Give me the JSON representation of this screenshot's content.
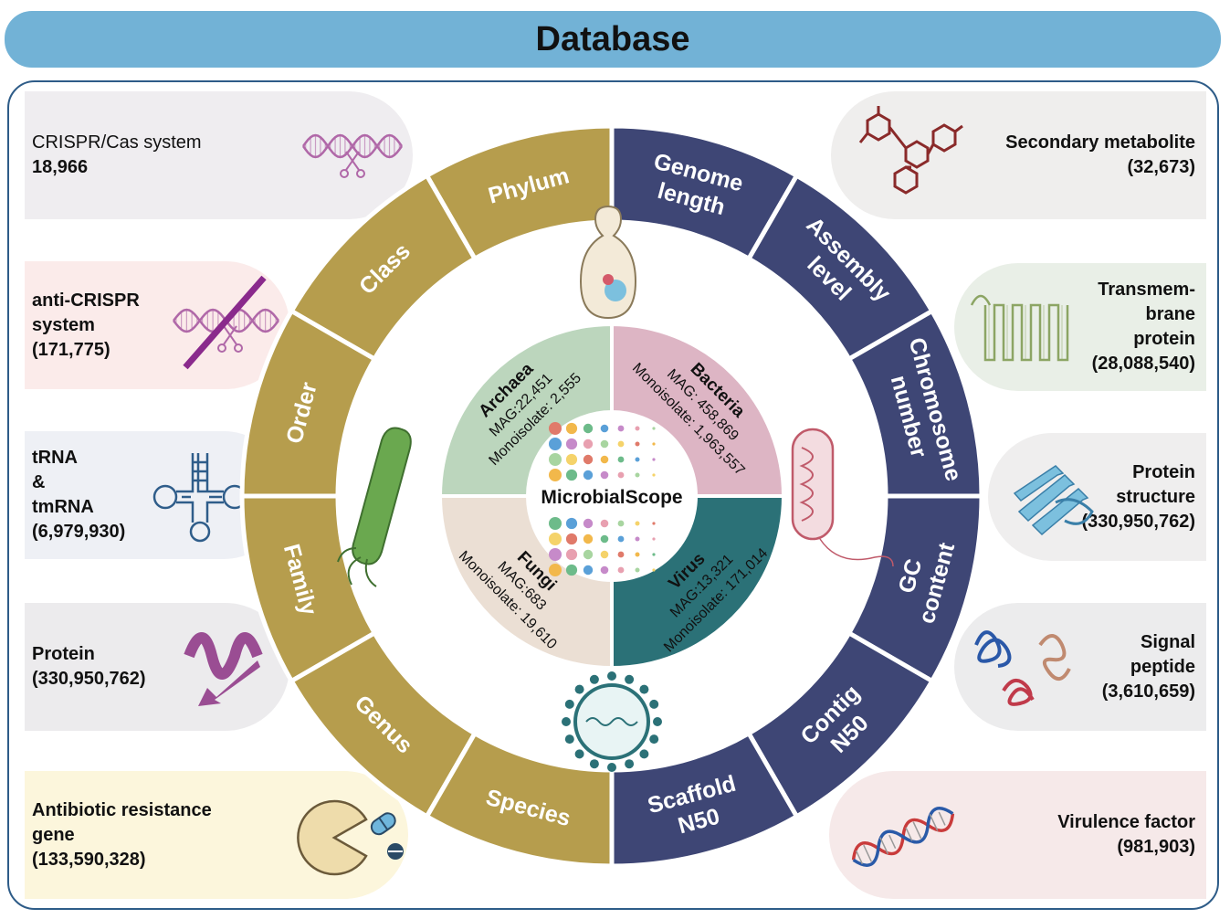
{
  "title": "Database",
  "left_cards": [
    {
      "lines": [
        "CRISPR/Cas system",
        "18,966"
      ],
      "bold": [
        false,
        true
      ],
      "bg": "#efedf0",
      "icon": "dna-scissors-icon"
    },
    {
      "lines": [
        "anti-CRISPR",
        "system",
        "(171,775)"
      ],
      "bold": [
        true,
        true,
        true
      ],
      "bg": "#fbebea",
      "icon": "dna-crossed-icon"
    },
    {
      "lines": [
        "tRNA",
        "&",
        "tmRNA",
        "(6,979,930)"
      ],
      "bold": [
        true,
        true,
        true,
        true
      ],
      "bg": "#eef0f5",
      "icon": "trna-icon"
    },
    {
      "lines": [
        "Protein",
        "(330,950,762)"
      ],
      "bold": [
        true,
        true
      ],
      "bg": "#ecebed",
      "icon": "protein-ribbon-icon"
    },
    {
      "lines": [
        "Antibiotic resistance",
        "gene",
        "(133,590,328)"
      ],
      "bold": [
        true,
        true,
        true
      ],
      "bg": "#fcf6dc",
      "icon": "pacman-pill-icon"
    }
  ],
  "right_cards": [
    {
      "lines": [
        "Secondary metabolite",
        "(32,673)"
      ],
      "bg": "#efeeed",
      "icon": "molecule-icon"
    },
    {
      "lines": [
        "Transmem-",
        "brane",
        "protein",
        "(28,088,540)"
      ],
      "bg": "#e9efe7",
      "icon": "transmembrane-icon"
    },
    {
      "lines": [
        "Protein",
        "structure",
        "(330,950,762)"
      ],
      "bg": "#efeeee",
      "icon": "protein-structure-icon"
    },
    {
      "lines": [
        "Signal",
        "peptide",
        "(3,610,659)"
      ],
      "bg": "#ececed",
      "icon": "signal-peptide-icon"
    },
    {
      "lines": [
        "Virulence factor",
        "(981,903)"
      ],
      "bg": "#f6e9e9",
      "icon": "dna-helix-icon"
    }
  ],
  "ring_left": {
    "color": "#b69d4d",
    "labels": [
      [
        "Phylum"
      ],
      [
        "Class"
      ],
      [
        "Order"
      ],
      [
        "Family"
      ],
      [
        "Genus"
      ],
      [
        "Species"
      ]
    ]
  },
  "ring_right": {
    "color": "#3e4675",
    "labels": [
      [
        "Genome",
        "length"
      ],
      [
        "Assembly",
        "level"
      ],
      [
        "Chromosome",
        "number"
      ],
      [
        "GC",
        "content"
      ],
      [
        "Contig",
        "N50"
      ],
      [
        "Scaffold",
        "N50"
      ]
    ]
  },
  "quadrants": [
    {
      "name": "Archaea",
      "mag": "MAG:22,451",
      "mono": "Monoisolate: 2,555",
      "color": "#bcd6bd"
    },
    {
      "name": "Bacteria",
      "mag": "MAG: 458,869",
      "mono": "Monoisolate: 1,963,557",
      "color": "#ddb5c4"
    },
    {
      "name": "Virus",
      "mag": "MAG:13,321",
      "mono": "Monoisolate: 171,014",
      "color": "#2b7177"
    },
    {
      "name": "Fungi",
      "mag": "MAG:683",
      "mono": "Monoisolate: 19,610",
      "color": "#ebdfd4"
    }
  ],
  "center_label": "MicrobialScope"
}
